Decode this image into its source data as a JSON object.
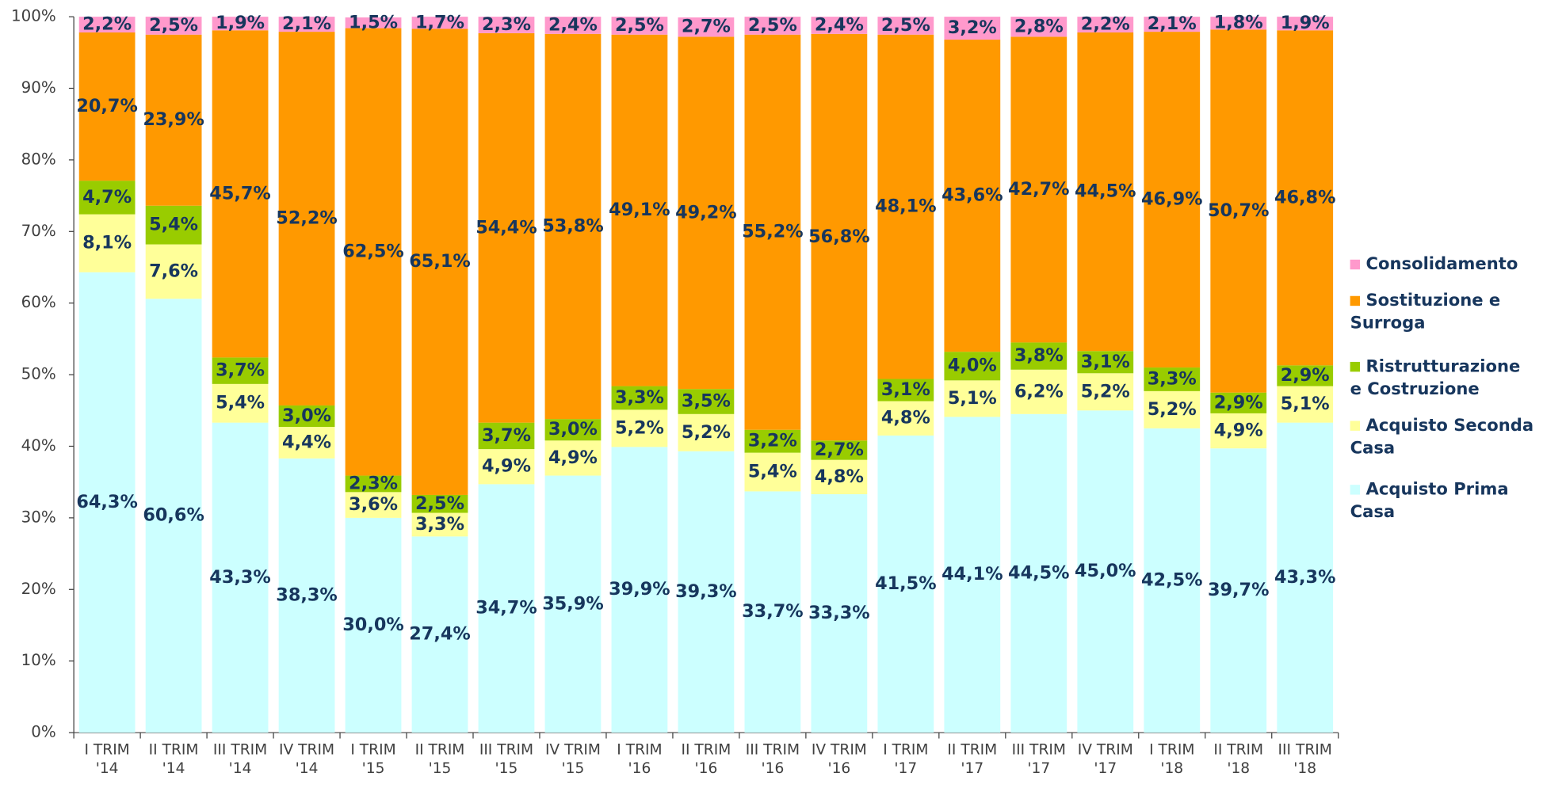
{
  "chart_data": {
    "type": "stacked_bar",
    "categories": [
      "I TRIM '14",
      "II TRIM '14",
      "III TRIM '14",
      "IV TRIM '14",
      "I TRIM '15",
      "II TRIM '15",
      "III TRIM '15",
      "IV TRIM '15",
      "I TRIM '16",
      "II TRIM '16",
      "III TRIM '16",
      "IV TRIM '16",
      "I TRIM '17",
      "II TRIM '17",
      "III TRIM '17",
      "IV TRIM '17",
      "I TRIM '18",
      "II TRIM '18",
      "III TRIM '18"
    ],
    "ylim": [
      0,
      100
    ],
    "yticks": [
      {
        "value": 0,
        "label": "0%"
      },
      {
        "value": 10,
        "label": "10%"
      },
      {
        "value": 20,
        "label": "20%"
      },
      {
        "value": 30,
        "label": "30%"
      },
      {
        "value": 40,
        "label": "40%"
      },
      {
        "value": 50,
        "label": "50%"
      },
      {
        "value": 60,
        "label": "60%"
      },
      {
        "value": 70,
        "label": "70%"
      },
      {
        "value": 80,
        "label": "80%"
      },
      {
        "value": 90,
        "label": "90%"
      },
      {
        "value": 100,
        "label": "100%"
      }
    ],
    "series": [
      {
        "name": "Acquisto Prima Casa",
        "color": "#ccffff",
        "values": [
          64.3,
          60.6,
          43.3,
          38.3,
          30.0,
          27.4,
          34.7,
          35.9,
          39.9,
          39.3,
          33.7,
          33.3,
          41.5,
          44.1,
          44.5,
          45.0,
          42.5,
          39.7,
          43.3
        ],
        "value_labels": [
          "64,3%",
          "60,6%",
          "43,3%",
          "38,3%",
          "30,0%",
          "27,4%",
          "34,7%",
          "35,9%",
          "39,9%",
          "39,3%",
          "33,7%",
          "33,3%",
          "41,5%",
          "44,1%",
          "44,5%",
          "45,0%",
          "42,5%",
          "39,7%",
          "43,3%"
        ]
      },
      {
        "name": "Acquisto Seconda Casa",
        "color": "#ffff99",
        "values": [
          8.1,
          7.6,
          5.4,
          4.4,
          3.6,
          3.3,
          4.9,
          4.9,
          5.2,
          5.2,
          5.4,
          4.8,
          4.8,
          5.1,
          6.2,
          5.2,
          5.2,
          4.9,
          5.1
        ],
        "value_labels": [
          "8,1%",
          "7,6%",
          "5,4%",
          "4,4%",
          "3,6%",
          "3,3%",
          "4,9%",
          "4,9%",
          "5,2%",
          "5,2%",
          "5,4%",
          "4,8%",
          "4,8%",
          "5,1%",
          "6,2%",
          "5,2%",
          "5,2%",
          "4,9%",
          "5,1%"
        ]
      },
      {
        "name": "Ristrutturazione e Costruzione",
        "color": "#99cc00",
        "values": [
          4.7,
          5.4,
          3.7,
          3.0,
          2.3,
          2.5,
          3.7,
          3.0,
          3.3,
          3.5,
          3.2,
          2.7,
          3.1,
          4.0,
          3.8,
          3.1,
          3.3,
          2.9,
          2.9
        ],
        "value_labels": [
          "4,7%",
          "5,4%",
          "3,7%",
          "3,0%",
          "2,3%",
          "2,5%",
          "3,7%",
          "3,0%",
          "3,3%",
          "3,5%",
          "3,2%",
          "2,7%",
          "3,1%",
          "4,0%",
          "3,8%",
          "3,1%",
          "3,3%",
          "2,9%",
          "2,9%"
        ]
      },
      {
        "name": "Sostituzione e Surroga",
        "color": "#ff9900",
        "values": [
          20.7,
          23.9,
          45.7,
          52.2,
          62.5,
          65.1,
          54.4,
          53.8,
          49.1,
          49.2,
          55.2,
          56.8,
          48.1,
          43.6,
          42.7,
          44.5,
          46.9,
          50.7,
          46.8
        ],
        "value_labels": [
          "20,7%",
          "23,9%",
          "45,7%",
          "52,2%",
          "62,5%",
          "65,1%",
          "54,4%",
          "53,8%",
          "49,1%",
          "49,2%",
          "55,2%",
          "56,8%",
          "48,1%",
          "43,6%",
          "42,7%",
          "44,5%",
          "46,9%",
          "50,7%",
          "46,8%"
        ]
      },
      {
        "name": "Consolidamento",
        "color": "#ff99cc",
        "values": [
          2.2,
          2.5,
          1.9,
          2.1,
          1.5,
          1.7,
          2.3,
          2.4,
          2.5,
          2.7,
          2.5,
          2.4,
          2.5,
          3.2,
          2.8,
          2.2,
          2.1,
          1.8,
          1.9
        ],
        "value_labels": [
          "2,2%",
          "2,5%",
          "1,9%",
          "2,1%",
          "1,5%",
          "1,7%",
          "2,3%",
          "2,4%",
          "2,5%",
          "2,7%",
          "2,5%",
          "2,4%",
          "2,5%",
          "3,2%",
          "2,8%",
          "2,2%",
          "2,1%",
          "1,8%",
          "1,9%"
        ]
      }
    ]
  }
}
